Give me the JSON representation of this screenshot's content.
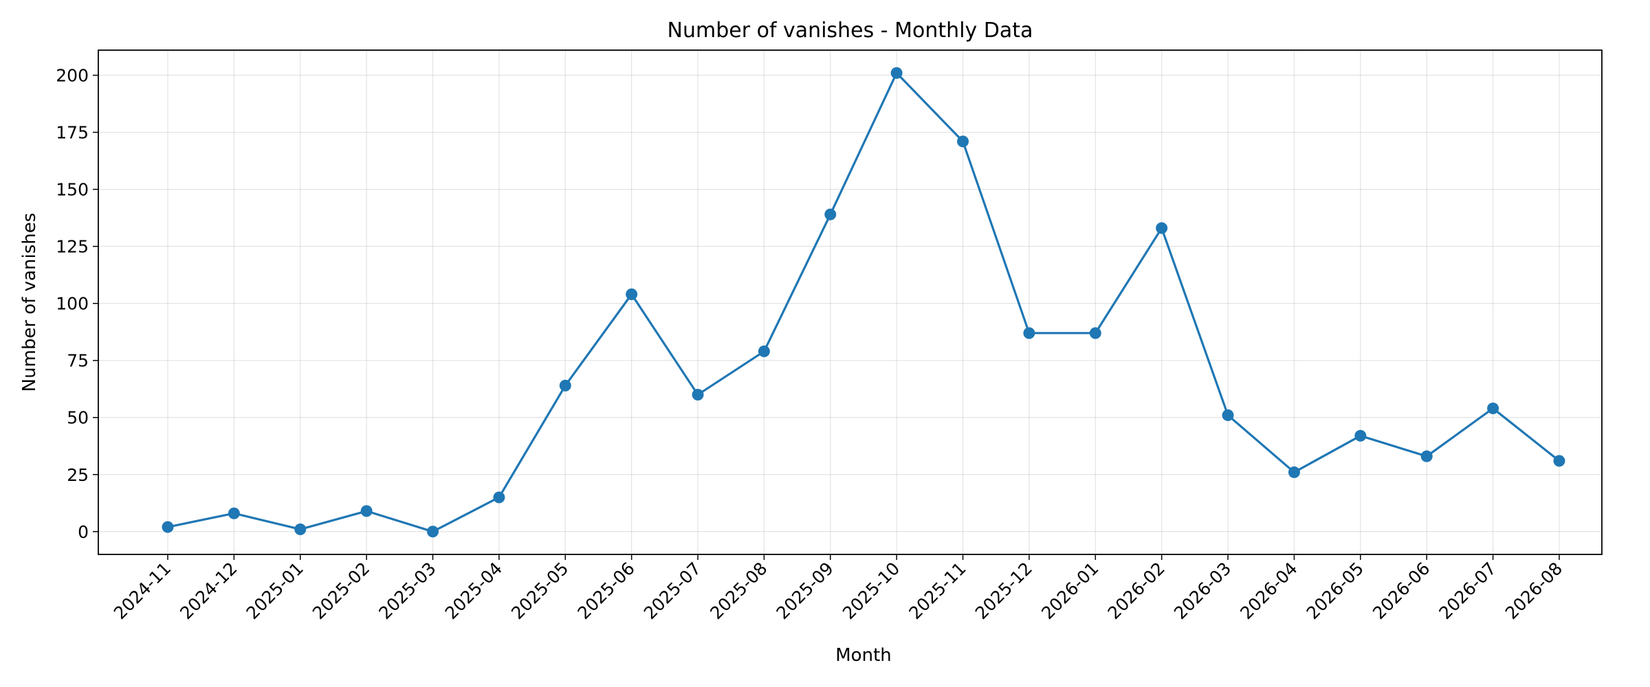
{
  "chart_data": {
    "type": "line",
    "title": "Number of vanishes - Monthly Data",
    "xlabel": "Month",
    "ylabel": "Number of vanishes",
    "categories": [
      "2024-11",
      "2024-12",
      "2025-01",
      "2025-02",
      "2025-03",
      "2025-04",
      "2025-05",
      "2025-06",
      "2025-07",
      "2025-08",
      "2025-09",
      "2025-10",
      "2025-11",
      "2025-12",
      "2026-01",
      "2026-02",
      "2026-03",
      "2026-04",
      "2026-05",
      "2026-06",
      "2026-07",
      "2026-08"
    ],
    "series": [
      {
        "values": [
          2,
          8,
          1,
          9,
          0,
          15,
          64,
          104,
          60,
          79,
          139,
          201,
          171,
          87,
          87,
          133,
          51,
          26,
          42,
          33,
          54,
          31
        ],
        "color": "#1f77b4",
        "marker": "circle"
      }
    ],
    "yticks": [
      "0",
      "25",
      "50",
      "75",
      "100",
      "125",
      "150",
      "175",
      "200"
    ],
    "ylim": [
      -10,
      211
    ],
    "grid": true,
    "legend": "none"
  }
}
